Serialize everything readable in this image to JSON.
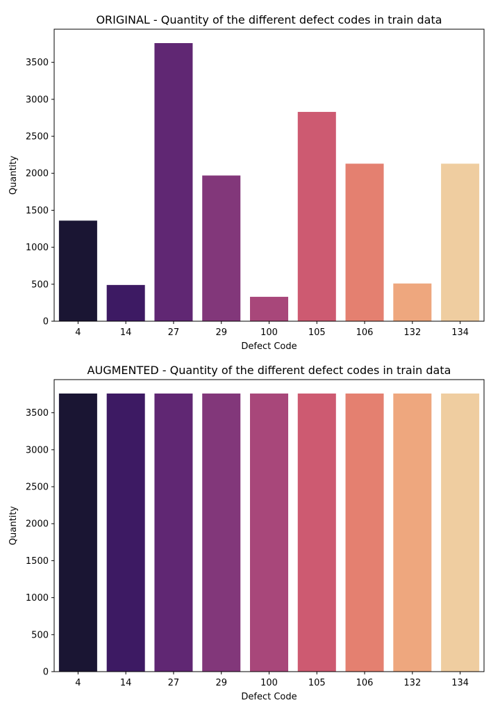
{
  "figure": {
    "background": "#ffffff"
  },
  "palette": [
    "#1a1533",
    "#3d1a63",
    "#602773",
    "#82377a",
    "#a8477a",
    "#cd5a71",
    "#e48070",
    "#eea77e",
    "#efcda0"
  ],
  "chart_data": [
    {
      "type": "bar",
      "title": "ORIGINAL - Quantity of the different defect codes in train data",
      "xlabel": "Defect Code",
      "ylabel": "Quantity",
      "categories": [
        "4",
        "14",
        "27",
        "29",
        "100",
        "105",
        "106",
        "132",
        "134"
      ],
      "values": [
        1360,
        490,
        3760,
        1970,
        330,
        2830,
        2130,
        510,
        2130
      ],
      "yticks": [
        0,
        500,
        1000,
        1500,
        2000,
        2500,
        3000,
        3500
      ],
      "ylim": [
        0,
        3948
      ],
      "grid": false,
      "legend": "none"
    },
    {
      "type": "bar",
      "title": "AUGMENTED - Quantity of the different defect codes in train data",
      "xlabel": "Defect Code",
      "ylabel": "Quantity",
      "categories": [
        "4",
        "14",
        "27",
        "29",
        "100",
        "105",
        "106",
        "132",
        "134"
      ],
      "values": [
        3760,
        3760,
        3760,
        3760,
        3760,
        3760,
        3760,
        3760,
        3760
      ],
      "yticks": [
        0,
        500,
        1000,
        1500,
        2000,
        2500,
        3000,
        3500
      ],
      "ylim": [
        0,
        3948
      ],
      "grid": false,
      "legend": "none"
    }
  ]
}
